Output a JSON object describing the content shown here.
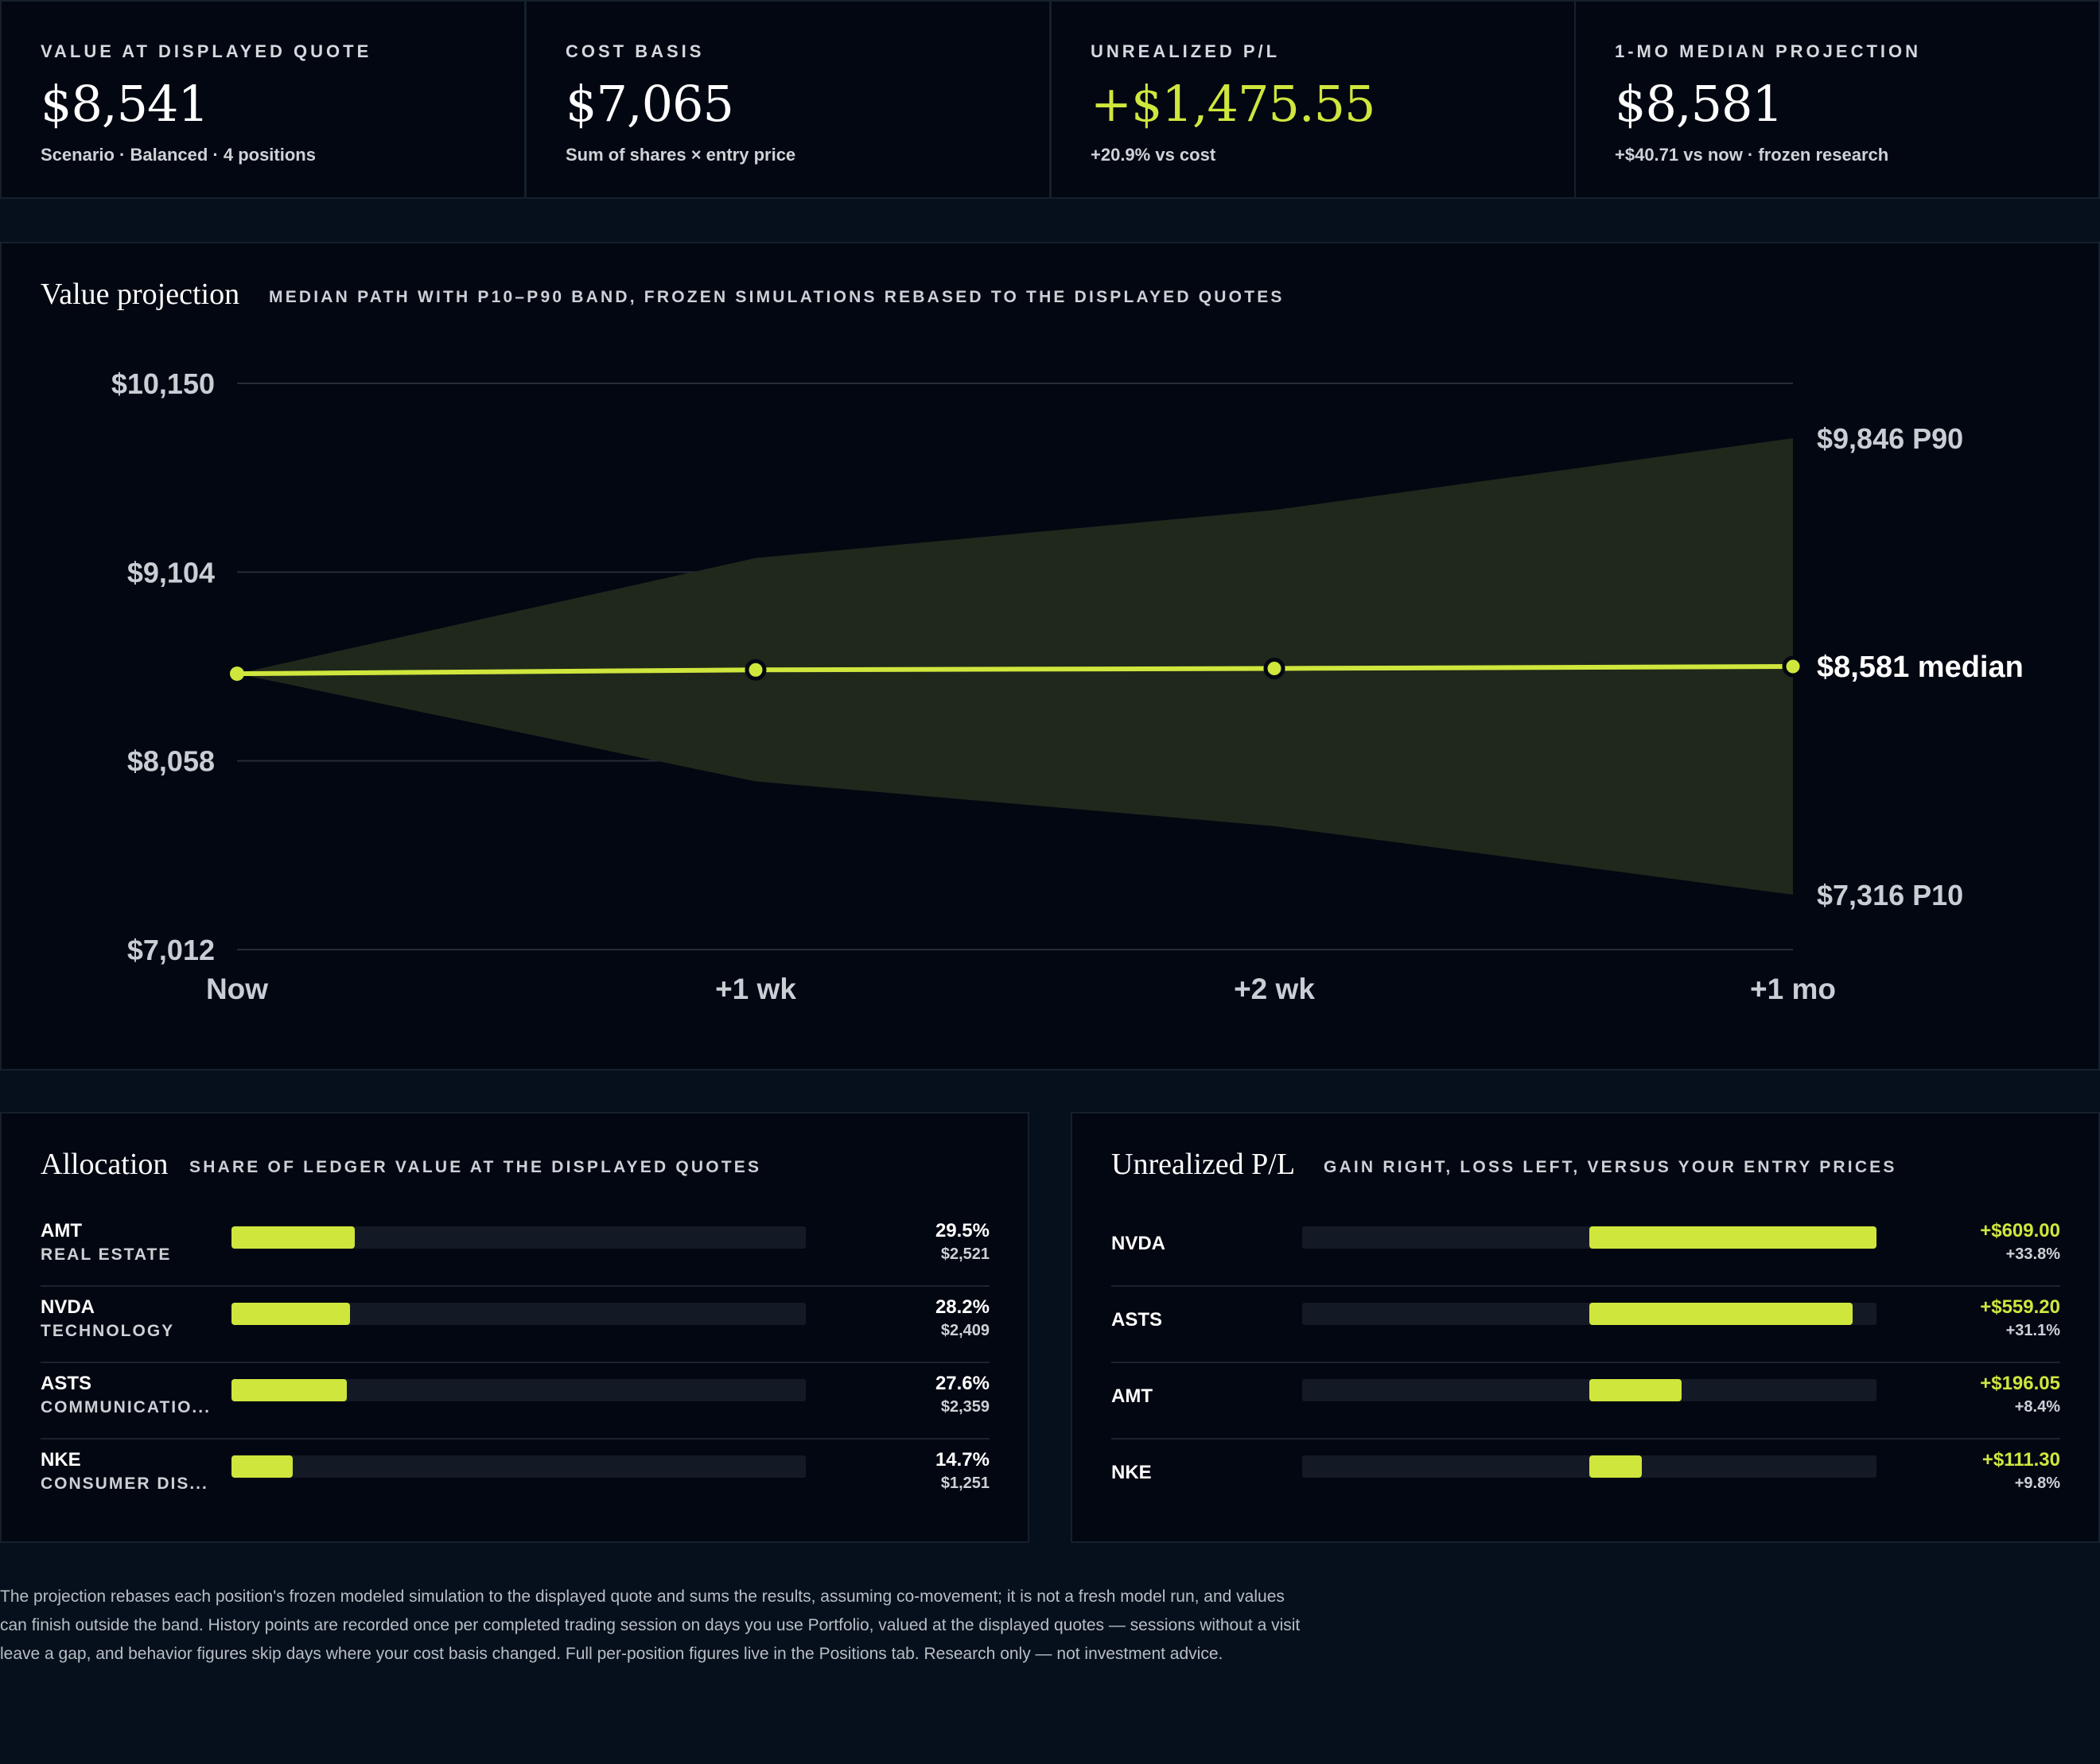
{
  "kpis": [
    {
      "label": "Value at displayed quote",
      "value": "$8,541",
      "sub": "Scenario · Balanced · 4 positions",
      "positive": false
    },
    {
      "label": "Cost basis",
      "value": "$7,065",
      "sub": "Sum of shares × entry price",
      "positive": false
    },
    {
      "label": "Unrealized P/L",
      "value": "+$1,475.55",
      "sub": "+20.9% vs cost",
      "positive": true
    },
    {
      "label": "1-mo median projection",
      "value": "$8,581",
      "sub": "+$40.71 vs now · frozen research",
      "positive": false
    }
  ],
  "projection": {
    "title": "Value projection",
    "subtitle": "Median path with P10–P90 band, frozen simulations rebased to the displayed quotes",
    "end_labels": {
      "p90": "$9,846 P90",
      "median": "$8,581 median",
      "p10": "$7,316 P10"
    }
  },
  "chart_data": {
    "type": "area",
    "categories": [
      "Now",
      "+1 wk",
      "+2 wk",
      "+1 mo"
    ],
    "y_ticks": [
      "$10,150",
      "$9,104",
      "$8,058",
      "$7,012"
    ],
    "ylim": [
      7012,
      10150
    ],
    "series": [
      {
        "name": "median",
        "values": [
          8541,
          8562,
          8570,
          8581
        ]
      },
      {
        "name": "P90",
        "values": [
          8541,
          9182,
          9448,
          9846
        ]
      },
      {
        "name": "P10",
        "values": [
          8541,
          7944,
          7696,
          7316
        ]
      }
    ],
    "colors": {
      "line": "#cfe63d",
      "band": "#20281c",
      "grid": "#262c35"
    }
  },
  "allocation": {
    "title": "Allocation",
    "subtitle": "Share of ledger value at the displayed quotes",
    "items": [
      {
        "ticker": "AMT",
        "sector": "REAL ESTATE",
        "share": 29.5,
        "pct": "29.5%",
        "value": "$2,521"
      },
      {
        "ticker": "NVDA",
        "sector": "TECHNOLOGY",
        "share": 28.2,
        "pct": "28.2%",
        "value": "$2,409"
      },
      {
        "ticker": "ASTS",
        "sector": "COMMUNICATIO...",
        "share": 27.6,
        "pct": "27.6%",
        "value": "$2,359"
      },
      {
        "ticker": "NKE",
        "sector": "CONSUMER DIS...",
        "share": 14.7,
        "pct": "14.7%",
        "value": "$1,251"
      }
    ]
  },
  "pl": {
    "title": "Unrealized P/L",
    "subtitle": "Gain right, loss left, versus your entry prices",
    "items": [
      {
        "ticker": "NVDA",
        "amount": 609.0,
        "amount_text": "+$609.00",
        "pct": "+33.8%"
      },
      {
        "ticker": "ASTS",
        "amount": 559.2,
        "amount_text": "+$559.20",
        "pct": "+31.1%"
      },
      {
        "ticker": "AMT",
        "amount": 196.05,
        "amount_text": "+$196.05",
        "pct": "+8.4%"
      },
      {
        "ticker": "NKE",
        "amount": 111.3,
        "amount_text": "+$111.30",
        "pct": "+9.8%"
      }
    ]
  },
  "footnote": "The projection rebases each position's frozen modeled simulation to the displayed quote and sums the results, assuming co-movement; it is not a fresh model run, and values can finish outside the band. History points are recorded once per completed trading session on days you use Portfolio, valued at the displayed quotes — sessions without a visit leave a gap, and behavior figures skip days where your cost basis changed. Full per-position figures live in the Positions tab. Research only — not investment advice."
}
